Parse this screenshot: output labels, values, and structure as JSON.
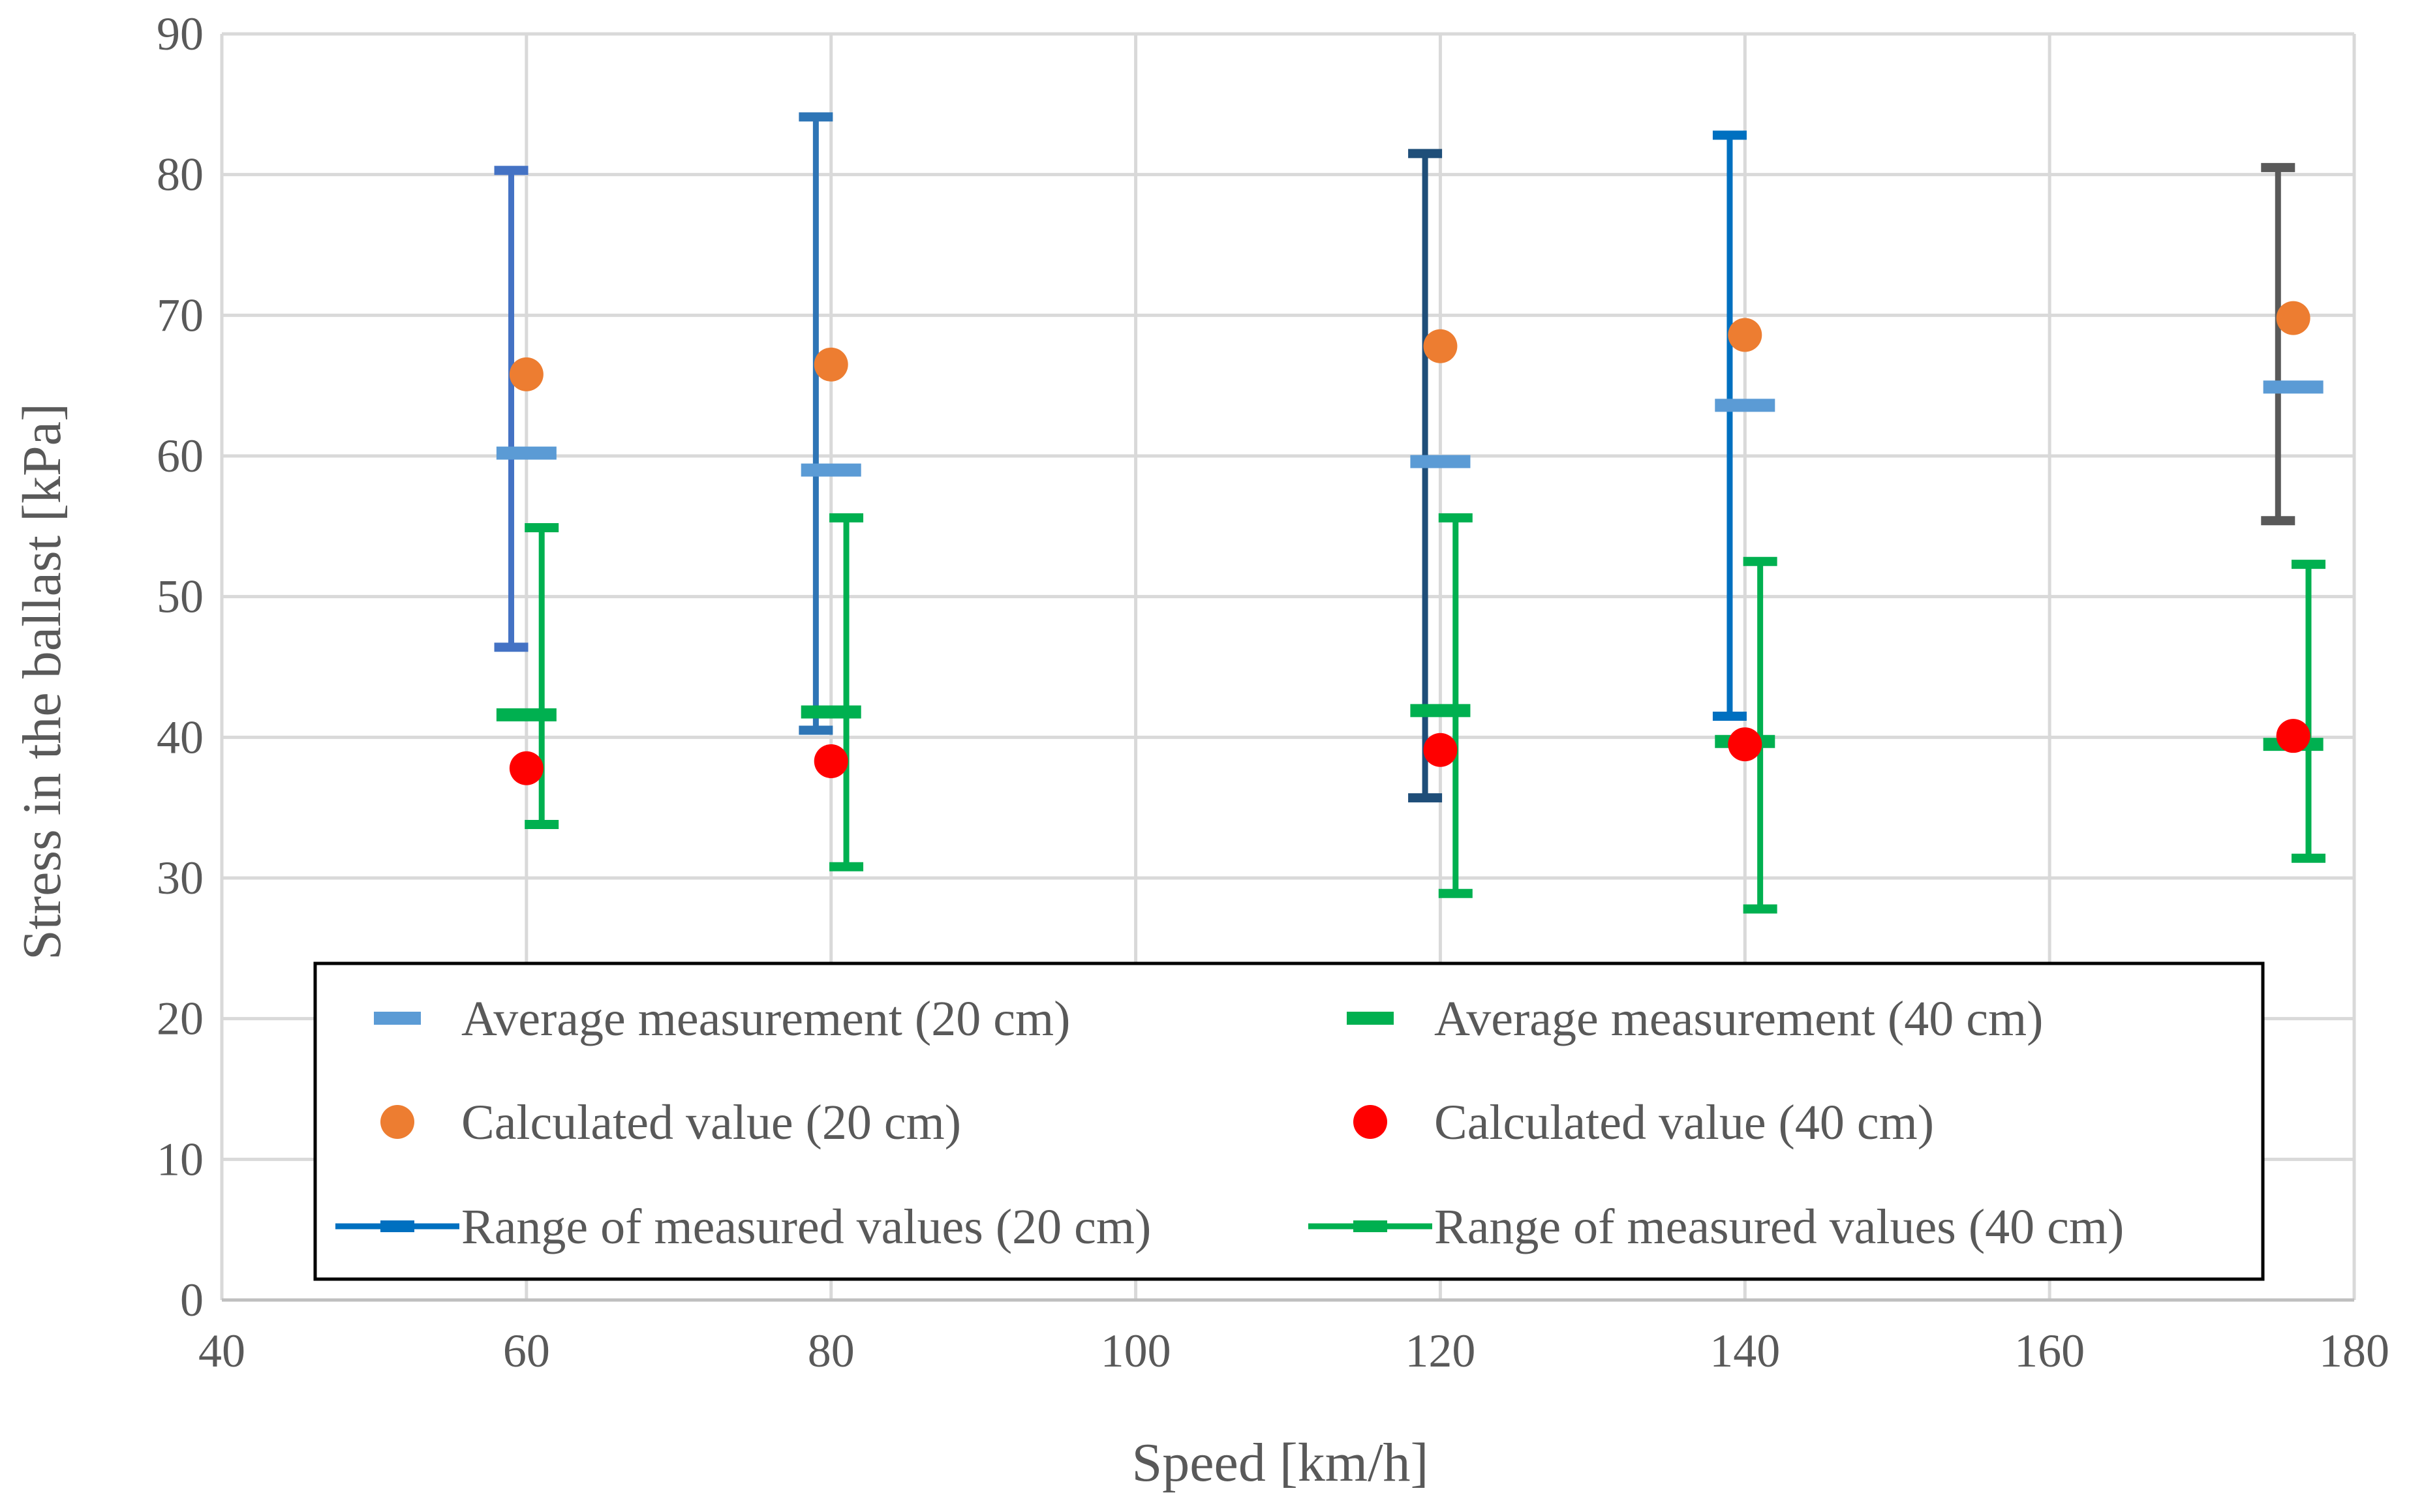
{
  "chart_data": {
    "type": "scatter",
    "title": "",
    "xlabel": "Speed [km/h]",
    "ylabel": "Stress in the ballast [kPa]",
    "xlim": [
      40,
      180
    ],
    "ylim": [
      0,
      90
    ],
    "xticks": [
      40,
      60,
      80,
      100,
      120,
      140,
      160,
      180
    ],
    "yticks": [
      0,
      10,
      20,
      30,
      40,
      50,
      60,
      70,
      80,
      90
    ],
    "grid": true,
    "legend_position": "bottom",
    "series": [
      {
        "name": "Average measurement (20 cm)",
        "marker": "dash",
        "color": "#5b9bd5",
        "points": [
          {
            "x": 60,
            "y": 60.2
          },
          {
            "x": 80,
            "y": 59.0
          },
          {
            "x": 120,
            "y": 59.6
          },
          {
            "x": 140,
            "y": 63.6
          },
          {
            "x": 176,
            "y": 64.9
          }
        ]
      },
      {
        "name": "Average measurement (40 cm)",
        "marker": "dash",
        "color": "#00b050",
        "points": [
          {
            "x": 60,
            "y": 41.6
          },
          {
            "x": 80,
            "y": 41.8
          },
          {
            "x": 120,
            "y": 41.9
          },
          {
            "x": 140,
            "y": 39.7
          },
          {
            "x": 176,
            "y": 39.5
          }
        ]
      },
      {
        "name": "Calculated value (20 cm)",
        "marker": "circle",
        "color": "#ed7d31",
        "points": [
          {
            "x": 60,
            "y": 65.8
          },
          {
            "x": 80,
            "y": 66.5
          },
          {
            "x": 120,
            "y": 67.8
          },
          {
            "x": 140,
            "y": 68.6
          },
          {
            "x": 176,
            "y": 69.8
          }
        ]
      },
      {
        "name": "Calculated value (40 cm)",
        "marker": "circle",
        "color": "#ff0000",
        "points": [
          {
            "x": 60,
            "y": 37.8
          },
          {
            "x": 80,
            "y": 38.3
          },
          {
            "x": 120,
            "y": 39.1
          },
          {
            "x": 140,
            "y": 39.5
          },
          {
            "x": 176,
            "y": 40.1
          }
        ]
      }
    ],
    "ranges": [
      {
        "name": "Range of measured values (20 cm)",
        "color": "#0070c0",
        "items": [
          {
            "x": 59,
            "low": 46.4,
            "high": 80.3,
            "color": "#4472c4"
          },
          {
            "x": 79,
            "low": 40.5,
            "high": 84.1,
            "color": "#2e75b6"
          },
          {
            "x": 119,
            "low": 35.7,
            "high": 81.5,
            "color": "#1f4e79"
          },
          {
            "x": 139,
            "low": 41.5,
            "high": 82.8,
            "color": "#0070c0"
          },
          {
            "x": 175,
            "low": 55.4,
            "high": 80.5,
            "color": "#595959"
          }
        ]
      },
      {
        "name": "Range of measured values (40 cm)",
        "color": "#00b050",
        "items": [
          {
            "x": 61,
            "low": 33.8,
            "high": 54.9,
            "color": "#00b050"
          },
          {
            "x": 81,
            "low": 30.8,
            "high": 55.6,
            "color": "#00b050"
          },
          {
            "x": 121,
            "low": 28.9,
            "high": 55.6,
            "color": "#00b050"
          },
          {
            "x": 141,
            "low": 27.8,
            "high": 52.5,
            "color": "#00b050"
          },
          {
            "x": 177,
            "low": 31.4,
            "high": 52.3,
            "color": "#00b050"
          }
        ]
      }
    ],
    "legend": [
      "Average measurement (20 cm)",
      "Average measurement (40 cm)",
      "Calculated value (20 cm)",
      "Calculated value (40 cm)",
      "Range of measured values (20 cm)",
      "Range of measured values (40 cm)"
    ]
  }
}
